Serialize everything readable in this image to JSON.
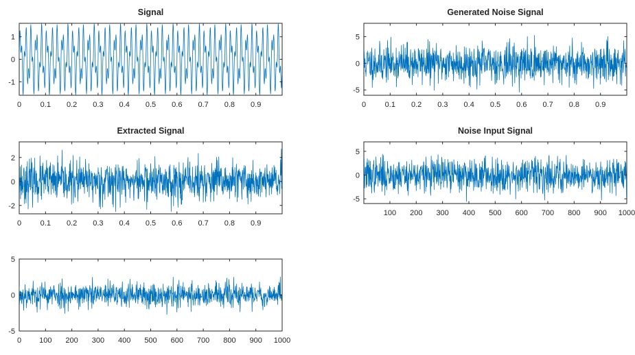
{
  "figure": {
    "line_color": "#0072BD",
    "axis_color": "#262626",
    "background": "#ffffff"
  },
  "chart_data": [
    {
      "type": "line",
      "title": "Signal",
      "xlim": [
        0,
        1
      ],
      "ylim": [
        -1.6,
        1.6
      ],
      "xticks": [
        0,
        0.1,
        0.2,
        0.3,
        0.4,
        0.5,
        0.6,
        0.7,
        0.8,
        0.9
      ],
      "xtick_labels": [
        "0",
        "0.1",
        "0.2",
        "0.3",
        "0.4",
        "0.5",
        "0.6",
        "0.7",
        "0.8",
        "0.9"
      ],
      "yticks": [
        -1,
        0,
        1
      ],
      "ytick_labels": [
        "-1",
        "0",
        "1"
      ],
      "series": [
        {
          "kind": "sum_of_sines",
          "components": [
            {
              "amplitude": 1,
              "frequency": 50
            },
            {
              "amplitude": 0.6,
              "frequency": 120
            }
          ],
          "x_start": 0,
          "x_end": 0.999,
          "n": 1000,
          "clip": 1.6
        }
      ]
    },
    {
      "type": "line",
      "title": "Generated Noise Signal",
      "xlim": [
        0,
        1
      ],
      "ylim": [
        -6,
        7.5
      ],
      "xticks": [
        0,
        0.1,
        0.2,
        0.3,
        0.4,
        0.5,
        0.6,
        0.7,
        0.8,
        0.9
      ],
      "xtick_labels": [
        "0",
        "0.1",
        "0.2",
        "0.3",
        "0.4",
        "0.5",
        "0.6",
        "0.7",
        "0.8",
        "0.9"
      ],
      "yticks": [
        -5,
        0,
        5
      ],
      "ytick_labels": [
        "-5",
        "0",
        "5"
      ],
      "series": [
        {
          "kind": "random_noise",
          "std": 1.8,
          "seed": 11,
          "x_start": 0,
          "x_end": 0.999,
          "n": 1000,
          "clip": 7.4
        }
      ]
    },
    {
      "type": "line",
      "title": "Extracted Signal",
      "xlim": [
        0,
        1
      ],
      "ylim": [
        -2.7,
        3.3
      ],
      "xticks": [
        0,
        0.1,
        0.2,
        0.3,
        0.4,
        0.5,
        0.6,
        0.7,
        0.8,
        0.9
      ],
      "xtick_labels": [
        "0",
        "0.1",
        "0.2",
        "0.3",
        "0.4",
        "0.5",
        "0.6",
        "0.7",
        "0.8",
        "0.9"
      ],
      "yticks": [
        -2,
        0,
        2
      ],
      "ytick_labels": [
        "-2",
        "0",
        "2"
      ],
      "series": [
        {
          "kind": "random_noise",
          "std": 0.85,
          "seed": 23,
          "x_start": 0,
          "x_end": 0.999,
          "n": 1000,
          "clip": 3.2
        }
      ]
    },
    {
      "type": "line",
      "title": "Noise Input Signal",
      "xlim": [
        1,
        1000
      ],
      "ylim": [
        -6,
        7
      ],
      "xticks": [
        100,
        200,
        300,
        400,
        500,
        600,
        700,
        800,
        900,
        1000
      ],
      "xtick_labels": [
        "100",
        "200",
        "300",
        "400",
        "500",
        "600",
        "700",
        "800",
        "900",
        "1000"
      ],
      "yticks": [
        -5,
        0,
        5
      ],
      "ytick_labels": [
        "-5",
        "0",
        "5"
      ],
      "series": [
        {
          "kind": "random_noise",
          "std": 1.8,
          "seed": 37,
          "x_start": 1,
          "x_end": 1000,
          "n": 1000,
          "clip": 6.9
        }
      ]
    },
    {
      "type": "line",
      "title": "",
      "xlim": [
        0,
        1000
      ],
      "ylim": [
        -5,
        5
      ],
      "xticks": [
        0,
        100,
        200,
        300,
        400,
        500,
        600,
        700,
        800,
        900,
        1000
      ],
      "xtick_labels": [
        "0",
        "100",
        "200",
        "300",
        "400",
        "500",
        "600",
        "700",
        "800",
        "900",
        "1000"
      ],
      "yticks": [
        -5,
        0,
        5
      ],
      "ytick_labels": [
        "-5",
        "0",
        "5"
      ],
      "series": [
        {
          "kind": "random_noise",
          "std": 0.9,
          "seed": 53,
          "x_start": 0,
          "x_end": 1000,
          "n": 1000,
          "clip": 3.4
        }
      ]
    }
  ]
}
